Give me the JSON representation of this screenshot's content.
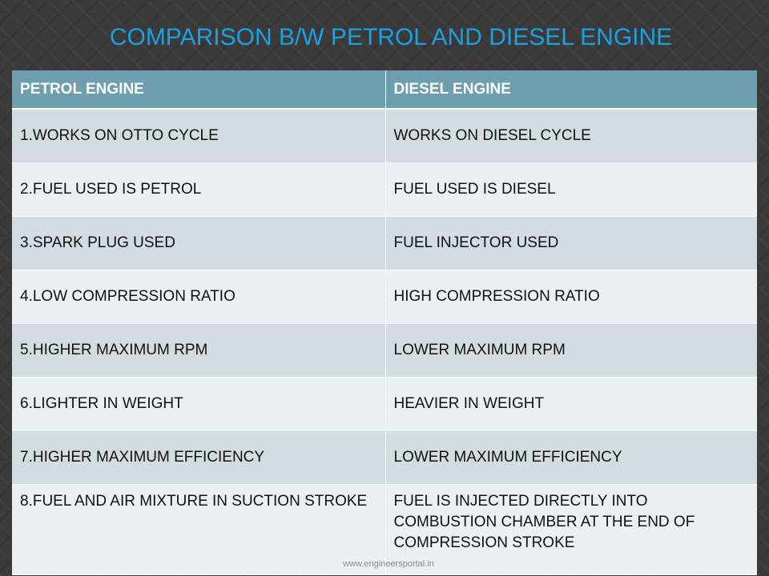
{
  "slide": {
    "title": "COMPARISON B/W PETROL AND DIESEL ENGINE",
    "watermark": "www.engineersportal.in"
  },
  "table": {
    "headers": [
      "PETROL ENGINE",
      "DIESEL ENGINE"
    ],
    "rows": [
      [
        "1.WORKS ON OTTO CYCLE",
        "WORKS ON DIESEL CYCLE"
      ],
      [
        "2.FUEL USED IS PETROL",
        "FUEL USED IS DIESEL"
      ],
      [
        "3.SPARK PLUG USED",
        "FUEL INJECTOR USED"
      ],
      [
        "4.LOW COMPRESSION RATIO",
        "HIGH COMPRESSION RATIO"
      ],
      [
        "5.HIGHER MAXIMUM RPM",
        "LOWER MAXIMUM RPM"
      ],
      [
        "6.LIGHTER IN WEIGHT",
        "HEAVIER IN WEIGHT"
      ],
      [
        "7.HIGHER MAXIMUM EFFICIENCY",
        "LOWER MAXIMUM EFFICIENCY"
      ],
      [
        "8.FUEL AND AIR MIXTURE IN SUCTION STROKE",
        "FUEL IS INJECTED DIRECTLY INTO COMBUSTION CHAMBER AT THE END OF COMPRESSION STROKE"
      ]
    ]
  },
  "colors": {
    "title": "#1ba1e2",
    "header_bg": "#6e9fae",
    "row_band_dark": "#d3dde1",
    "row_band_light": "#ebf0f2",
    "background": "#3a3a3a"
  }
}
